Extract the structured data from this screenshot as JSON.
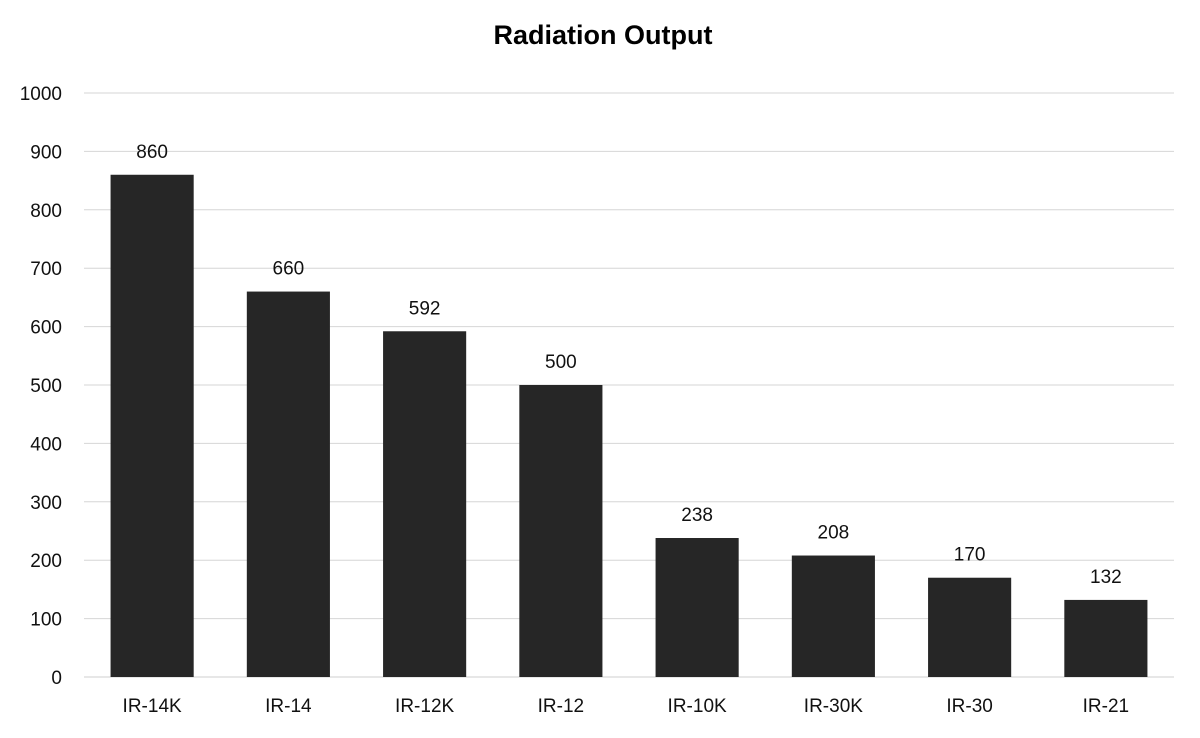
{
  "chart_data": {
    "type": "bar",
    "title": "Radiation Output",
    "xlabel": "",
    "ylabel": "",
    "categories": [
      "IR-14K",
      "IR-14",
      "IR-12K",
      "IR-12",
      "IR-10K",
      "IR-30K",
      "IR-30",
      "IR-21"
    ],
    "values": [
      860,
      660,
      592,
      500,
      238,
      208,
      170,
      132
    ],
    "ylim": [
      0,
      1000
    ],
    "yticks": [
      "0",
      "100",
      "200",
      "300",
      "400",
      "500",
      "600",
      "700",
      "800",
      "900",
      "1000"
    ],
    "grid": true,
    "legend": "none",
    "bar_color": "#262626",
    "data_labels": true
  }
}
